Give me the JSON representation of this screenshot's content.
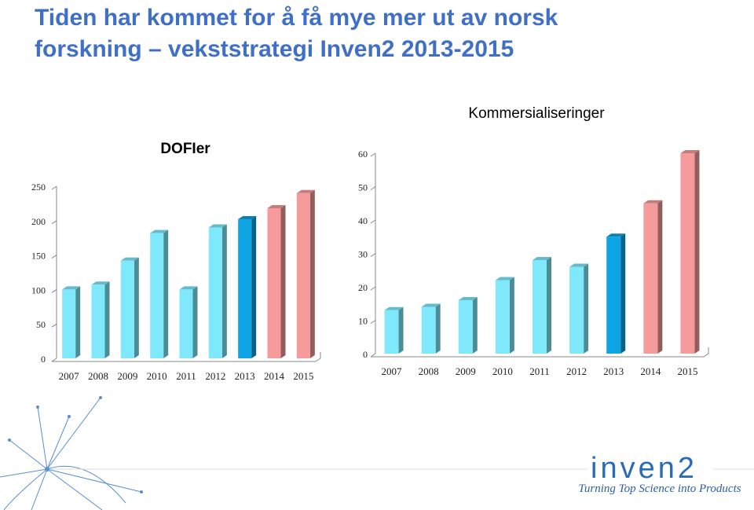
{
  "header": {
    "title_lines": [
      "Tiden har kommet for å få mye mer ut av norsk",
      "forskning – vekststrategi Inven2 2013-2015"
    ]
  },
  "chart_data": [
    {
      "type": "bar3d",
      "title": "DOFIer",
      "categories": [
        "2007",
        "2008",
        "2009",
        "2010",
        "2011",
        "2012",
        "2013",
        "2014",
        "2015"
      ],
      "values": [
        100,
        107,
        142,
        182,
        100,
        190,
        202,
        218,
        240
      ],
      "colors": [
        "#7fe9fb",
        "#7fe9fb",
        "#7fe9fb",
        "#7fe9fb",
        "#7fe9fb",
        "#7fe9fb",
        "#0ea3e3",
        "#f59b9b",
        "#f59b9b"
      ],
      "ylim": [
        0,
        250
      ],
      "yticks": [
        0,
        50,
        100,
        150,
        200,
        250
      ]
    },
    {
      "type": "bar3d",
      "title": "Kommersialiseringer",
      "categories": [
        "2007",
        "2008",
        "2009",
        "2010",
        "2011",
        "2012",
        "2013",
        "2014",
        "2015"
      ],
      "values": [
        13,
        14,
        16,
        22,
        28,
        26,
        35,
        45,
        60
      ],
      "colors": [
        "#7fe9fb",
        "#7fe9fb",
        "#7fe9fb",
        "#7fe9fb",
        "#7fe9fb",
        "#7fe9fb",
        "#0ea3e3",
        "#f59b9b",
        "#f59b9b"
      ],
      "ylim": [
        0,
        60
      ],
      "yticks": [
        0,
        10,
        20,
        30,
        40,
        50,
        60
      ]
    }
  ],
  "logo": {
    "name": "inven2",
    "tagline": "Turning Top Science into Products"
  }
}
